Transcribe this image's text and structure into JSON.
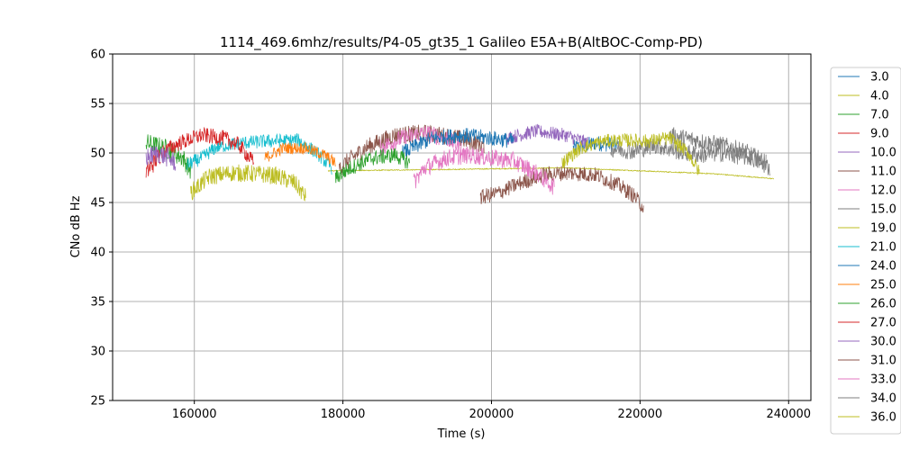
{
  "chart_data": {
    "type": "line",
    "title": "1114_469.6mhz/results/P4-05_gt35_1 Galileo E5A+B(AltBOC-Comp-PD)",
    "xlabel": "Time (s)",
    "ylabel": "CNo dB Hz",
    "xlim": [
      149000,
      243000
    ],
    "ylim": [
      25,
      60
    ],
    "xticks": [
      160000,
      180000,
      200000,
      220000,
      240000
    ],
    "xtick_labels": [
      "160000",
      "180000",
      "200000",
      "220000",
      "240000"
    ],
    "yticks": [
      25,
      30,
      35,
      40,
      45,
      50,
      55,
      60
    ],
    "ytick_labels": [
      "25",
      "30",
      "35",
      "40",
      "45",
      "50",
      "55",
      "60"
    ],
    "grid": true,
    "legend_position": "outside-right",
    "series": [
      {
        "name": "3.0",
        "color": "#1f77b4",
        "x": [
          211000,
          214000,
          217000
        ],
        "y": [
          50.5,
          51.0,
          50.8
        ],
        "noise": 0.8
      },
      {
        "name": "4.0",
        "color": "#bcbd22",
        "x": [
          178000,
          190000,
          200000,
          210000,
          220000,
          230000,
          238000
        ],
        "y": [
          48.2,
          48.3,
          48.4,
          48.5,
          48.2,
          47.9,
          47.4
        ],
        "noise": 0.05
      },
      {
        "name": "7.0",
        "color": "#2ca02c",
        "x": [
          153500,
          156000,
          158500,
          159500
        ],
        "y": [
          51.0,
          50.5,
          49.5,
          48.2
        ],
        "noise": 1.0
      },
      {
        "name": "9.0",
        "color": "#d62728",
        "x": [
          153500,
          154500,
          155500
        ],
        "y": [
          48.0,
          49.0,
          50.0
        ],
        "noise": 1.0
      },
      {
        "name": "10.0",
        "color": "#9467bd",
        "x": [
          202000,
          206000,
          210000,
          213000
        ],
        "y": [
          51.5,
          52.2,
          51.8,
          51.0
        ],
        "noise": 0.7
      },
      {
        "name": "11.0",
        "color": "#8c564b",
        "x": [
          179500,
          183000,
          187000,
          191000,
          195000,
          199000
        ],
        "y": [
          48.5,
          50.5,
          51.8,
          52.0,
          51.6,
          50.8
        ],
        "noise": 0.9
      },
      {
        "name": "12.0",
        "color": "#e377c2",
        "x": [
          185000,
          188000,
          191000,
          194000,
          196000
        ],
        "y": [
          50.5,
          51.5,
          52.0,
          51.5,
          50.5
        ],
        "noise": 0.9
      },
      {
        "name": "15.0",
        "color": "#7f7f7f",
        "x": [
          224000,
          226000,
          228000,
          231000,
          234000,
          237000
        ],
        "y": [
          51.8,
          51.5,
          51.2,
          50.8,
          50.2,
          49.0
        ],
        "noise": 0.9
      },
      {
        "name": "19.0",
        "color": "#bcbd22",
        "x": [
          159500,
          162000,
          165000,
          168000,
          171000,
          173500,
          175000
        ],
        "y": [
          46.0,
          47.6,
          48.0,
          47.9,
          47.7,
          47.0,
          45.5
        ],
        "noise": 0.9
      },
      {
        "name": "21.0",
        "color": "#17becf",
        "x": [
          159000,
          161000,
          163000,
          166000,
          170000,
          174000,
          176500,
          178500
        ],
        "y": [
          48.8,
          49.5,
          50.6,
          51.0,
          51.2,
          51.3,
          50.0,
          48.5
        ],
        "noise": 0.7
      },
      {
        "name": "24.0",
        "color": "#1f77b4",
        "x": [
          188000,
          192000,
          196000,
          200000,
          203000
        ],
        "y": [
          50.0,
          51.5,
          51.8,
          51.5,
          51.2
        ],
        "noise": 0.8
      },
      {
        "name": "25.0",
        "color": "#ff7f0e",
        "x": [
          169500,
          172000,
          175000,
          177500,
          179000
        ],
        "y": [
          49.5,
          50.5,
          50.5,
          49.8,
          49.0
        ],
        "noise": 0.6
      },
      {
        "name": "26.0",
        "color": "#2ca02c",
        "x": [
          179000,
          181000,
          184000,
          187000,
          189000
        ],
        "y": [
          47.5,
          48.5,
          49.5,
          49.8,
          49.0
        ],
        "noise": 0.8
      },
      {
        "name": "27.0",
        "color": "#d62728",
        "x": [
          155500,
          158000,
          161000,
          164000,
          166000,
          168000
        ],
        "y": [
          50.0,
          51.0,
          51.8,
          51.5,
          50.8,
          49.0
        ],
        "noise": 0.8
      },
      {
        "name": "30.0",
        "color": "#9467bd",
        "x": [
          153500,
          155000,
          156500,
          157500
        ],
        "y": [
          49.5,
          50.0,
          49.5,
          49.0
        ],
        "noise": 1.0
      },
      {
        "name": "31.0",
        "color": "#8c564b",
        "x": [
          198500,
          201000,
          204000,
          207000,
          210000,
          214000,
          217000,
          219000,
          220500
        ],
        "y": [
          45.5,
          46.0,
          47.0,
          47.8,
          48.0,
          47.8,
          46.8,
          45.8,
          44.5
        ],
        "noise": 0.8
      },
      {
        "name": "33.0",
        "color": "#e377c2",
        "x": [
          189500,
          191000,
          194000,
          197000,
          200000,
          203000,
          206000,
          208500
        ],
        "y": [
          47.0,
          48.5,
          49.5,
          49.8,
          49.5,
          49.2,
          48.0,
          46.5
        ],
        "noise": 0.9
      },
      {
        "name": "34.0",
        "color": "#7f7f7f",
        "x": [
          216000,
          219000,
          222000,
          225000,
          228000,
          231000,
          235000,
          237500
        ],
        "y": [
          50.5,
          50.2,
          50.8,
          50.2,
          49.8,
          50.0,
          49.5,
          48.5
        ],
        "noise": 0.9
      },
      {
        "name": "36.0",
        "color": "#bcbd22",
        "x": [
          209500,
          212000,
          215000,
          218000,
          221000,
          224000,
          226500,
          228000
        ],
        "y": [
          49.0,
          50.5,
          51.2,
          51.3,
          51.2,
          51.5,
          50.0,
          48.0
        ],
        "noise": 0.7
      }
    ]
  }
}
